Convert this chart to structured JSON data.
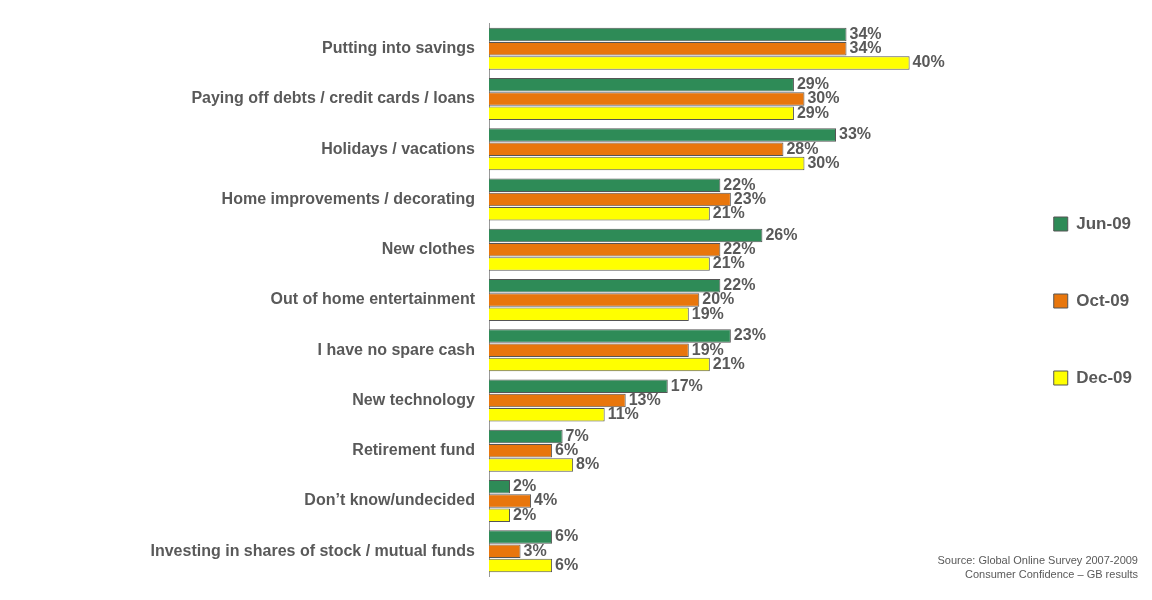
{
  "chart_data": {
    "type": "bar",
    "orientation": "horizontal",
    "categories": [
      "Putting into savings",
      "Paying off debts / credit cards / loans",
      "Holidays / vacations",
      "Home improvements / decorating",
      "New clothes",
      "Out of home entertainment",
      "I have no spare cash",
      "New technology",
      "Retirement fund",
      "Don’t know/undecided",
      "Investing in shares of stock / mutual funds"
    ],
    "series": [
      {
        "name": "Jun-09",
        "color": "#2e8b57",
        "values": [
          34,
          29,
          33,
          22,
          26,
          22,
          23,
          17,
          7,
          2,
          6
        ],
        "value_labels": [
          "34%",
          "29%",
          "33%",
          "22%",
          "26%",
          "22%",
          "23%",
          "17%",
          "7%",
          "2%",
          "6%"
        ]
      },
      {
        "name": "Oct-09",
        "color": "#e8760c",
        "values": [
          34,
          30,
          28,
          23,
          22,
          20,
          19,
          13,
          6,
          4,
          3
        ],
        "value_labels": [
          "34%",
          "30%",
          "28%",
          "23%",
          "22%",
          "20%",
          "19%",
          "13%",
          "6%",
          "4%",
          "3%"
        ]
      },
      {
        "name": "Dec-09",
        "color": "#ffff00",
        "values": [
          40,
          29,
          30,
          21,
          21,
          19,
          21,
          11,
          8,
          2,
          6
        ],
        "value_labels": [
          "40%",
          "29%",
          "30%",
          "21%",
          "21%",
          "19%",
          "21%",
          "11%",
          "8%",
          "2%",
          "6%"
        ]
      }
    ],
    "legend": "right",
    "annotations": [
      "Source: Global Online Survey 2007-2009",
      "Consumer Confidence – GB results"
    ]
  }
}
